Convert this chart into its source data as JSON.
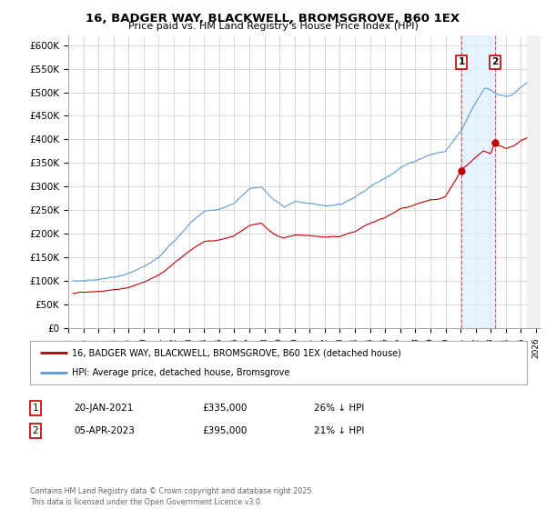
{
  "title": "16, BADGER WAY, BLACKWELL, BROMSGROVE, B60 1EX",
  "subtitle": "Price paid vs. HM Land Registry's House Price Index (HPI)",
  "ylabel_ticks": [
    "£0",
    "£50K",
    "£100K",
    "£150K",
    "£200K",
    "£250K",
    "£300K",
    "£350K",
    "£400K",
    "£450K",
    "£500K",
    "£550K",
    "£600K"
  ],
  "ytick_values": [
    0,
    50000,
    100000,
    150000,
    200000,
    250000,
    300000,
    350000,
    400000,
    450000,
    500000,
    550000,
    600000
  ],
  "ylim": [
    0,
    620000
  ],
  "xlim_start": 1995.3,
  "xlim_end": 2026.3,
  "xtick_years": [
    1995,
    1996,
    1997,
    1998,
    1999,
    2000,
    2001,
    2002,
    2003,
    2004,
    2005,
    2006,
    2007,
    2008,
    2009,
    2010,
    2011,
    2012,
    2013,
    2014,
    2015,
    2016,
    2017,
    2018,
    2019,
    2020,
    2021,
    2022,
    2023,
    2024,
    2025,
    2026
  ],
  "hpi_color": "#5b9bd5",
  "price_color": "#c00000",
  "sale1_x": 2021.05,
  "sale1_y": 335000,
  "sale2_x": 2023.27,
  "sale2_y": 395000,
  "shade_color": "#ddeeff",
  "hatch_start": 2025.4,
  "legend_label1": "16, BADGER WAY, BLACKWELL, BROMSGROVE, B60 1EX (detached house)",
  "legend_label2": "HPI: Average price, detached house, Bromsgrove",
  "table_row1": [
    "1",
    "20-JAN-2021",
    "£335,000",
    "26% ↓ HPI"
  ],
  "table_row2": [
    "2",
    "05-APR-2023",
    "£395,000",
    "21% ↓ HPI"
  ],
  "copyright_text": "Contains HM Land Registry data © Crown copyright and database right 2025.\nThis data is licensed under the Open Government Licence v3.0.",
  "background_color": "#ffffff",
  "grid_color": "#cccccc"
}
